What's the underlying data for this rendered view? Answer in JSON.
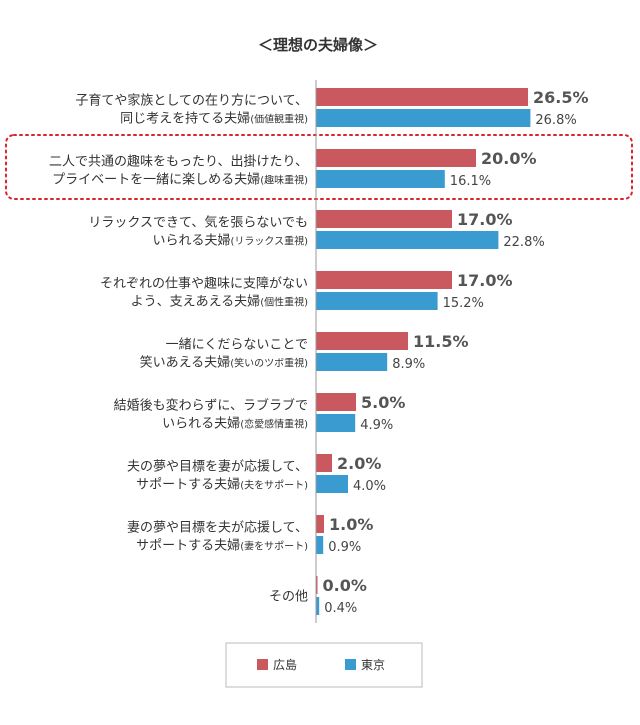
{
  "colors": {
    "hiroshima": "#c9585f",
    "tokyo": "#3a9bd1",
    "highlight": "#d9252c",
    "axis": "#9a9a9a",
    "legend_border": "#bbbbbb",
    "value_h": "#555555",
    "value_t": "#444444"
  },
  "chart_data": {
    "type": "bar",
    "orientation": "horizontal",
    "title": "＜理想の夫婦像＞",
    "categories": [
      {
        "lines": [
          {
            "main": "子育てや家族としての在り方について、"
          },
          {
            "main": "同じ考えを持てる夫婦",
            "sub": "(価値観重視)"
          }
        ]
      },
      {
        "lines": [
          {
            "main": "二人で共通の趣味をもったり、出掛けたり、"
          },
          {
            "main": "プライベートを一緒に楽しめる夫婦",
            "sub": "(趣味重視)"
          }
        ],
        "highlighted": true
      },
      {
        "lines": [
          {
            "main": "リラックスできて、気を張らないでも"
          },
          {
            "main": "いられる夫婦",
            "sub": "(リラックス重視)"
          }
        ]
      },
      {
        "lines": [
          {
            "main": "それぞれの仕事や趣味に支障がない"
          },
          {
            "main": "よう、支えあえる夫婦",
            "sub": "(個性重視)"
          }
        ]
      },
      {
        "lines": [
          {
            "main": "一緒にくだらないことで"
          },
          {
            "main": "笑いあえる夫婦",
            "sub": "(笑いのツボ重視)"
          }
        ]
      },
      {
        "lines": [
          {
            "main": "結婚後も変わらずに、ラブラブで"
          },
          {
            "main": "いられる夫婦",
            "sub": "(恋愛感情重視)"
          }
        ]
      },
      {
        "lines": [
          {
            "main": "夫の夢や目標を妻が応援して、"
          },
          {
            "main": "サポートする夫婦",
            "sub": "(夫をサポート)"
          }
        ]
      },
      {
        "lines": [
          {
            "main": "妻の夢や目標を夫が応援して、"
          },
          {
            "main": "サポートする夫婦",
            "sub": "(妻をサポート)"
          }
        ]
      },
      {
        "lines": [
          {
            "main": "その他"
          }
        ]
      }
    ],
    "series": [
      {
        "name": "広島",
        "values": [
          26.5,
          20.0,
          17.0,
          17.0,
          11.5,
          5.0,
          2.0,
          1.0,
          0.0
        ],
        "labels": [
          "26.5%",
          "20.0%",
          "17.0%",
          "17.0%",
          "11.5%",
          "5.0%",
          "2.0%",
          "1.0%",
          "0.0%"
        ]
      },
      {
        "name": "東京",
        "values": [
          26.8,
          16.1,
          22.8,
          15.2,
          8.9,
          4.9,
          4.0,
          0.9,
          0.4
        ],
        "labels": [
          "26.8%",
          "16.1%",
          "22.8%",
          "15.2%",
          "8.9%",
          "4.9%",
          "4.0%",
          "0.9%",
          "0.4%"
        ]
      }
    ],
    "legend_placement": "bottom",
    "grid": false
  }
}
